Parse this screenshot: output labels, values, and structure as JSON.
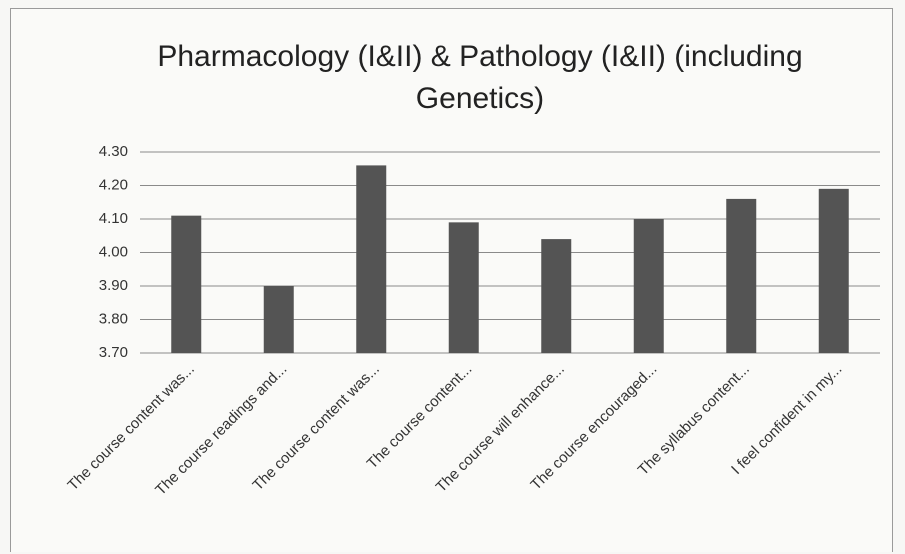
{
  "chart_data": {
    "type": "bar",
    "title": "Pharmacology (I&II) & Pathology (I&II) (including Genetics)",
    "categories": [
      "The course content was...",
      "The course readings and...",
      "The course content was...",
      "The course content...",
      "The course will enhance...",
      "The course encouraged...",
      "The syllabus content...",
      "I feel confident in my..."
    ],
    "values": [
      4.11,
      3.9,
      4.26,
      4.09,
      4.04,
      4.1,
      4.16,
      4.19
    ],
    "color": "#545454",
    "ylim": [
      3.7,
      4.3
    ],
    "yticks": [
      {
        "value": 3.7,
        "label": "3.70"
      },
      {
        "value": 3.8,
        "label": "3.80"
      },
      {
        "value": 3.9,
        "label": "3.90"
      },
      {
        "value": 4.0,
        "label": "4.00"
      },
      {
        "value": 4.1,
        "label": "4.10"
      },
      {
        "value": 4.2,
        "label": "4.20"
      },
      {
        "value": 4.3,
        "label": "4.30"
      }
    ],
    "grid": true
  }
}
